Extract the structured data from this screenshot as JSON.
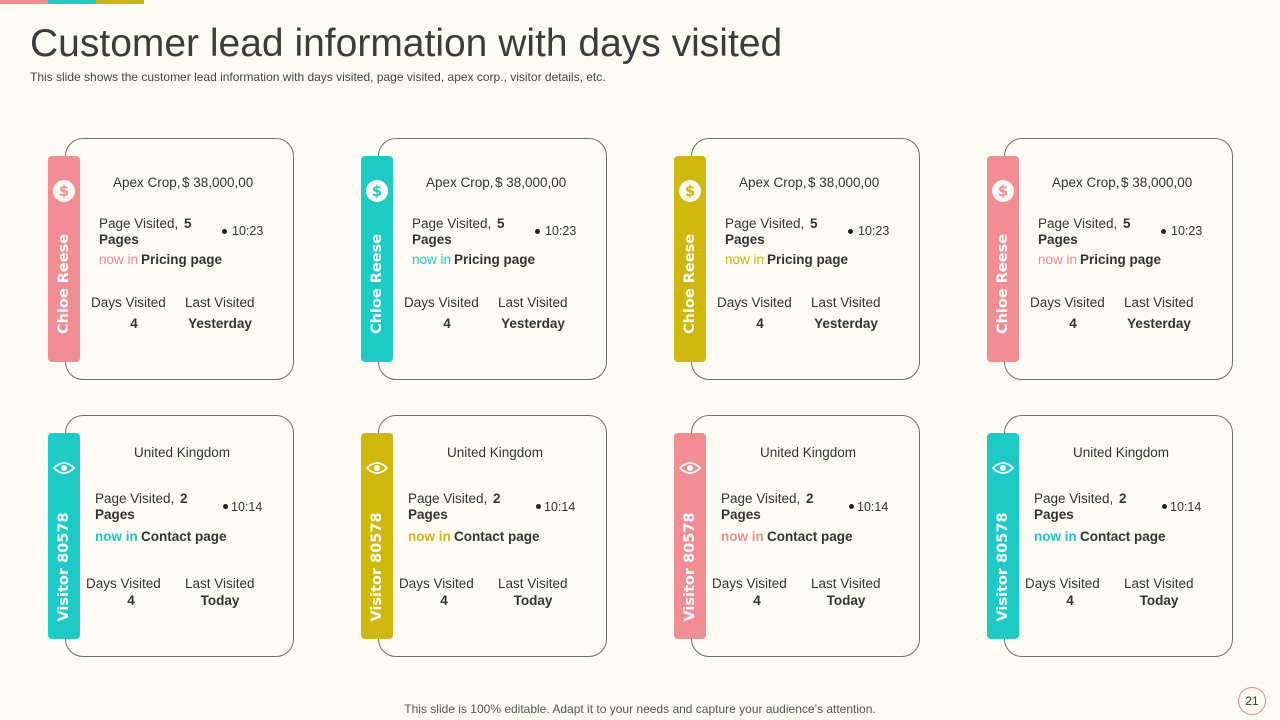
{
  "slide": {
    "title": "Customer lead information with days visited",
    "subtitle": "This slide shows the customer lead information with days visited, page visited, apex corp., visitor details, etc.",
    "footer": "This slide is 100% editable. Adapt it to your needs and capture your audience’s attention.",
    "page_number": "21"
  },
  "colors": {
    "pink": "#f28d93",
    "teal": "#1dcbc6",
    "olive": "#d0b70b",
    "background": "#fcfbf3"
  },
  "top_bar_colors": [
    "#f28d93",
    "#1dcbc6",
    "#d0b70b"
  ],
  "row1": {
    "strip_label": "Chloe Reese",
    "icon": "dollar-circle-icon",
    "company": "Apex Crop,",
    "amount": "$ 38,000,00",
    "page_visited_label": "Page Visited,",
    "page_count": "5",
    "pages_label": "Pages",
    "time": "10:23",
    "now_in": "now in",
    "page_name": "Pricing page",
    "days_visited_label": "Days Visited",
    "last_visited_label": "Last  Visited",
    "days_visited": "4",
    "last_visited": "Yesterday",
    "card_colors": [
      "#f28d93",
      "#1dcbc6",
      "#d0b70b",
      "#f28d93"
    ]
  },
  "row2": {
    "strip_label": "Visitor 80578",
    "icon": "eye-icon",
    "location": "United Kingdom",
    "page_visited_label": "Page Visited,",
    "page_count": "2",
    "pages_label": "Pages",
    "time": "10:14",
    "now_in": "now in",
    "page_name": "Contact page",
    "days_visited_label": "Days Visited",
    "last_visited_label": "Last  Visited",
    "days_visited": "4",
    "last_visited": "Today",
    "card_colors": [
      "#1dcbc6",
      "#d0b70b",
      "#f28d93",
      "#1dcbc6"
    ]
  }
}
